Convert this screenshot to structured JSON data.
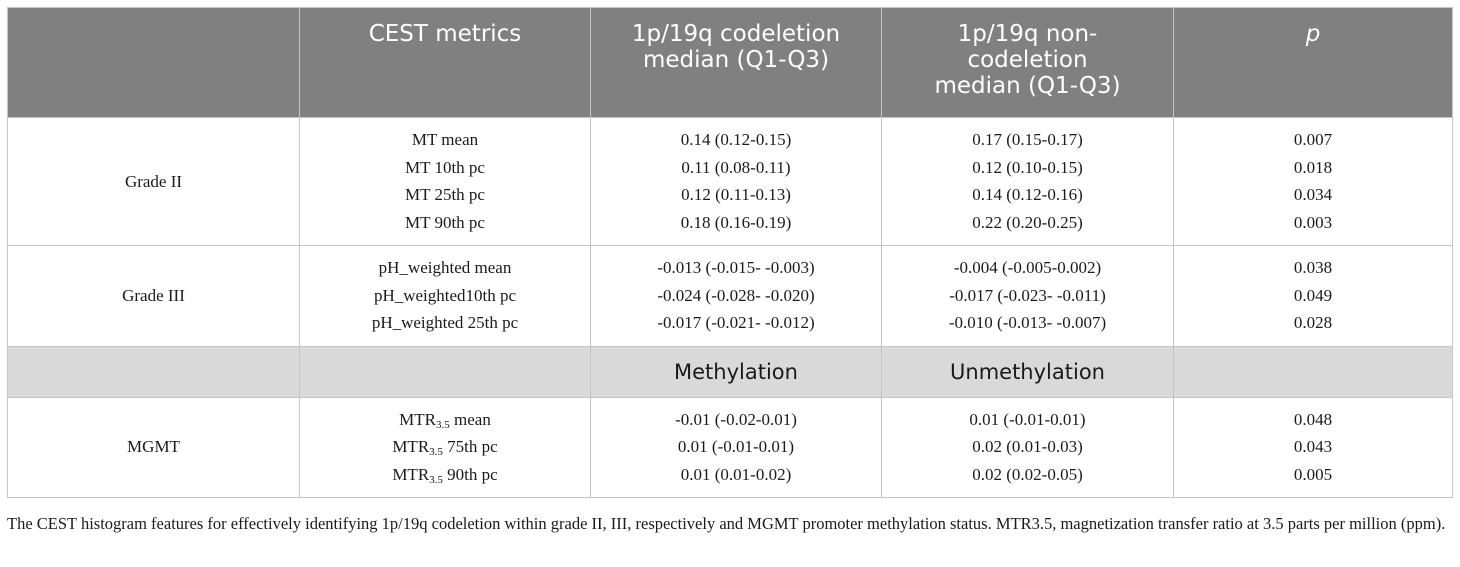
{
  "table": {
    "headers": [
      "",
      "CEST metrics",
      "1p/19q codeletion median (Q1-Q3)",
      "1p/19q non-codeletion median (Q1-Q3)",
      "p"
    ],
    "header_lines": {
      "col1": [
        "CEST metrics"
      ],
      "col2": [
        "1p/19q codeletion",
        "median (Q1-Q3)"
      ],
      "col3": [
        "1p/19q non-",
        "codeletion",
        "median (Q1-Q3)"
      ],
      "col4": [
        "p"
      ]
    },
    "groups": [
      {
        "label": "Grade II",
        "metrics": [
          "MT mean",
          "MT 10th pc",
          "MT 25th pc",
          "MT 90th pc"
        ],
        "col_a": [
          "0.14 (0.12-0.15)",
          "0.11 (0.08-0.11)",
          "0.12 (0.11-0.13)",
          "0.18 (0.16-0.19)"
        ],
        "col_b": [
          "0.17 (0.15-0.17)",
          "0.12 (0.10-0.15)",
          "0.14 (0.12-0.16)",
          "0.22 (0.20-0.25)"
        ],
        "p": [
          "0.007",
          "0.018",
          "0.034",
          "0.003"
        ]
      },
      {
        "label": "Grade III",
        "metrics": [
          "pH_weighted mean",
          "pH_weighted10th pc",
          "pH_weighted 25th pc"
        ],
        "col_a": [
          "-0.013 (-0.015- -0.003)",
          "-0.024 (-0.028- -0.020)",
          "-0.017 (-0.021- -0.012)"
        ],
        "col_b": [
          "-0.004 (-0.005-0.002)",
          "-0.017 (-0.023- -0.011)",
          "-0.010 (-0.013- -0.007)"
        ],
        "p": [
          "0.038",
          "0.049",
          "0.028"
        ]
      }
    ],
    "subheader": {
      "col2": "Methylation",
      "col3": "Unmethylation"
    },
    "mgmt": {
      "label": "MGMT",
      "metric_prefix": "MTR",
      "metric_sub": "3.5",
      "metric_suffixes": [
        " mean",
        " 75th pc",
        " 90th pc"
      ],
      "col_a": [
        "-0.01 (-0.02-0.01)",
        "0.01 (-0.01-0.01)",
        "0.01 (0.01-0.02)"
      ],
      "col_b": [
        "0.01 (-0.01-0.01)",
        "0.02 (0.01-0.03)",
        "0.02 (0.02-0.05)"
      ],
      "p": [
        "0.048",
        "0.043",
        "0.005"
      ]
    }
  },
  "footnote": "The CEST histogram features for effectively identifying 1p/19q codeletion within grade II, III, respectively and MGMT promoter methylation status. MTR3.5, magnetization transfer ratio at 3.5 parts per million (ppm)."
}
